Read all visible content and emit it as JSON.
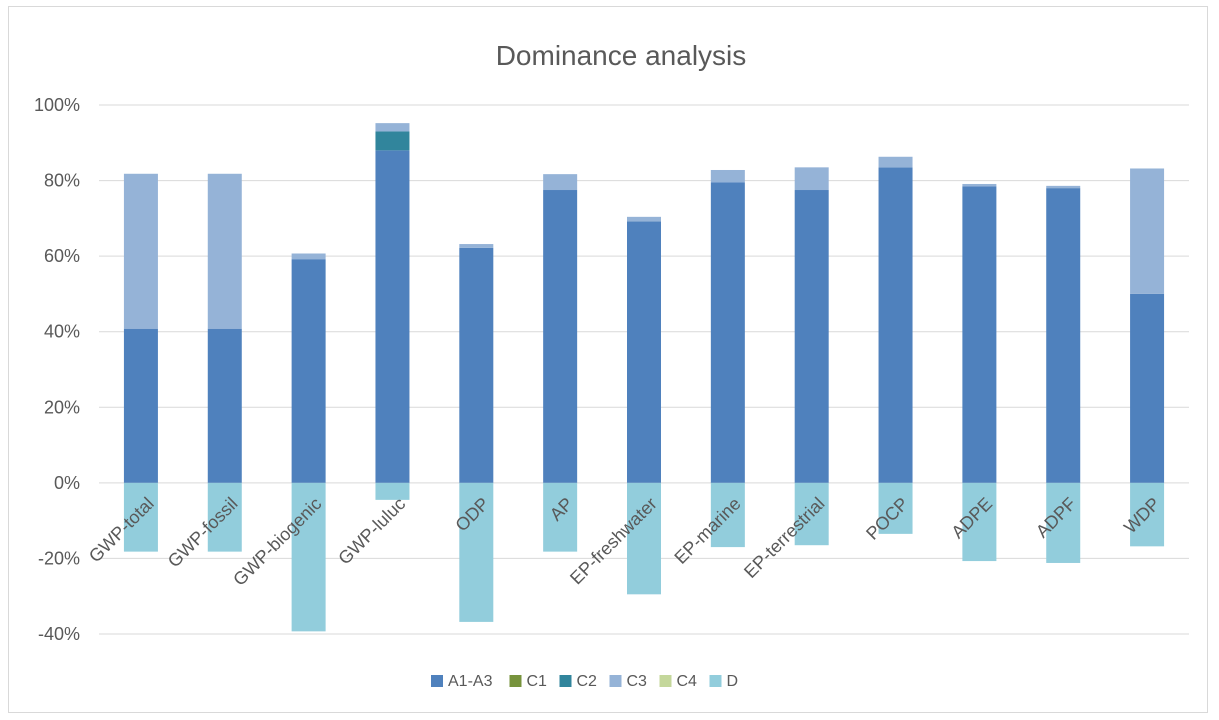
{
  "chart_data": {
    "type": "bar",
    "stacked": true,
    "title": "Dominance analysis",
    "xlabel": "",
    "ylabel": "",
    "ylim": [
      -0.4,
      1.0
    ],
    "y_tick_values": [
      -0.4,
      -0.2,
      0,
      0.2,
      0.4,
      0.6,
      0.8,
      1.0
    ],
    "y_tick_labels": [
      "-40%",
      "-20%",
      "0%",
      "20%",
      "40%",
      "60%",
      "80%",
      "100%"
    ],
    "grid": true,
    "legend_position": "bottom",
    "categories": [
      "GWP-total",
      "GWP-fossil",
      "GWP-biogenic",
      "GWP-luluc",
      "ODP",
      "AP",
      "EP-freshwater",
      "EP-marine",
      "EP-terrestrial",
      "POCP",
      "ADPE",
      "ADPF",
      "WDP"
    ],
    "series": [
      {
        "name": "A1-A3",
        "color": "#4f81bd",
        "values": [
          0.408,
          0.408,
          0.592,
          0.88,
          0.622,
          0.775,
          0.692,
          0.795,
          0.775,
          0.835,
          0.785,
          0.78,
          0.5
        ]
      },
      {
        "name": "C1",
        "color": "#77933c",
        "values": [
          0,
          0,
          0,
          0,
          0,
          0,
          0,
          0,
          0,
          0,
          0,
          0,
          0
        ]
      },
      {
        "name": "C2",
        "color": "#31859c",
        "values": [
          0,
          0,
          0,
          0.05,
          0,
          0,
          0,
          0,
          0,
          0,
          0,
          0,
          0
        ]
      },
      {
        "name": "C3",
        "color": "#95b3d7",
        "values": [
          0.41,
          0.41,
          0.015,
          0.022,
          0.01,
          0.042,
          0.012,
          0.033,
          0.06,
          0.028,
          0.006,
          0.006,
          0.332
        ]
      },
      {
        "name": "C4",
        "color": "#c4d79b",
        "values": [
          0,
          0,
          0,
          0,
          0,
          0,
          0,
          0,
          0,
          0,
          0,
          0,
          0
        ]
      },
      {
        "name": "D",
        "color": "#92cddc",
        "values": [
          -0.182,
          -0.182,
          -0.393,
          -0.045,
          -0.368,
          -0.182,
          -0.295,
          -0.17,
          -0.165,
          -0.135,
          -0.207,
          -0.212,
          -0.168
        ]
      }
    ]
  }
}
